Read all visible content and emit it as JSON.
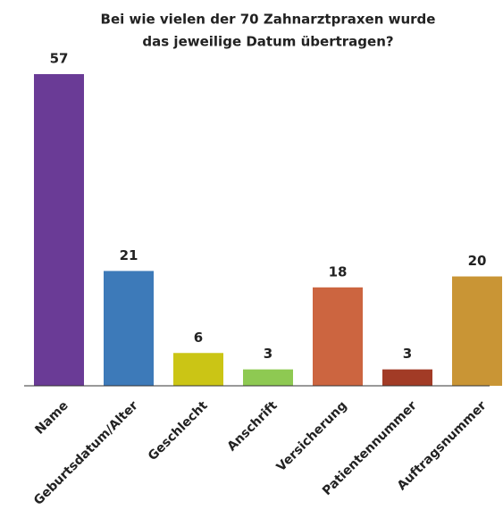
{
  "chart_data": {
    "type": "bar",
    "title": [
      "Bei wie vielen der 70 Zahnarztpraxen wurde",
      "das jeweilige Datum übertragen?"
    ],
    "categories": [
      "Name",
      "Geburtsdatum/Alter",
      "Geschlecht",
      "Anschrift",
      "Versicherung",
      "Patientennummer",
      "Auftragsnummer"
    ],
    "values": [
      57,
      21,
      6,
      3,
      18,
      3,
      20
    ],
    "colors": [
      "#6a3b96",
      "#3d7ab9",
      "#cbc515",
      "#8ec952",
      "#cc6540",
      "#a23b26",
      "#c99535"
    ],
    "grid": false
  }
}
